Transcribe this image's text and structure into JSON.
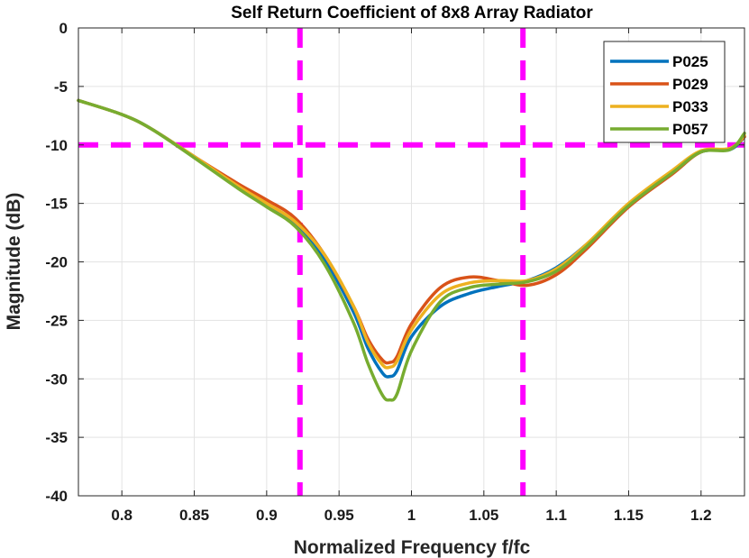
{
  "chart_data": {
    "type": "line",
    "title": "Self Return Coefficient of 8x8 Array Radiator",
    "xlabel": "Normalized Frequency f/fc",
    "ylabel": "Magnitude (dB)",
    "xlim": [
      0.77,
      1.23
    ],
    "ylim": [
      -40,
      0
    ],
    "xticks": [
      0.8,
      0.85,
      0.9,
      0.95,
      1,
      1.05,
      1.1,
      1.15,
      1.2
    ],
    "xtick_labels": [
      "0.8",
      "0.85",
      "0.9",
      "0.95",
      "1",
      "1.05",
      "1.1",
      "1.15",
      "1.2"
    ],
    "yticks": [
      0,
      -5,
      -10,
      -15,
      -20,
      -25,
      -30,
      -35,
      -40
    ],
    "ytick_labels": [
      "0",
      "-5",
      "-10",
      "-15",
      "-20",
      "-25",
      "-30",
      "-35",
      "-40"
    ],
    "grid": true,
    "legend_position": "top-right",
    "reference_lines": {
      "color": "#ff00ff",
      "vertical_x": [
        0.923,
        1.077
      ],
      "horizontal_y": [
        -10
      ]
    },
    "series": [
      {
        "name": "P025",
        "color": "#0072bd",
        "x": [
          0.77,
          0.8,
          0.82,
          0.85,
          0.88,
          0.9,
          0.92,
          0.94,
          0.96,
          0.97,
          0.98,
          0.985,
          0.99,
          1.0,
          1.02,
          1.04,
          1.06,
          1.08,
          1.1,
          1.12,
          1.15,
          1.18,
          1.2,
          1.22,
          1.23
        ],
        "y": [
          -6.2,
          -7.4,
          -8.6,
          -11.0,
          -13.6,
          -15.2,
          -16.8,
          -19.8,
          -24.3,
          -27.4,
          -29.5,
          -29.8,
          -29.3,
          -26.4,
          -23.8,
          -22.7,
          -22.1,
          -21.6,
          -20.5,
          -18.6,
          -15.2,
          -12.4,
          -10.6,
          -10.4,
          -9.3
        ]
      },
      {
        "name": "P029",
        "color": "#d95319",
        "x": [
          0.77,
          0.8,
          0.82,
          0.85,
          0.88,
          0.9,
          0.92,
          0.94,
          0.96,
          0.97,
          0.98,
          0.985,
          0.99,
          1.0,
          1.02,
          1.04,
          1.06,
          1.08,
          1.1,
          1.12,
          1.15,
          1.18,
          1.2,
          1.22,
          1.23
        ],
        "y": [
          -6.2,
          -7.4,
          -8.6,
          -11.0,
          -13.3,
          -14.7,
          -16.3,
          -19.4,
          -23.8,
          -26.6,
          -28.4,
          -28.6,
          -28.1,
          -25.3,
          -22.2,
          -21.3,
          -21.6,
          -22.0,
          -21.1,
          -19.0,
          -15.3,
          -12.5,
          -10.6,
          -10.3,
          -9.3
        ]
      },
      {
        "name": "P033",
        "color": "#edb120",
        "x": [
          0.77,
          0.8,
          0.82,
          0.85,
          0.88,
          0.9,
          0.92,
          0.94,
          0.96,
          0.97,
          0.98,
          0.985,
          0.99,
          1.0,
          1.02,
          1.04,
          1.06,
          1.08,
          1.1,
          1.12,
          1.15,
          1.18,
          1.2,
          1.22,
          1.23
        ],
        "y": [
          -6.2,
          -7.4,
          -8.6,
          -11.0,
          -13.5,
          -15.0,
          -16.6,
          -19.4,
          -23.8,
          -26.9,
          -28.8,
          -29.0,
          -28.5,
          -25.8,
          -22.8,
          -21.8,
          -21.6,
          -21.6,
          -20.6,
          -18.6,
          -15.0,
          -12.2,
          -10.5,
          -10.3,
          -9.2
        ]
      },
      {
        "name": "P057",
        "color": "#77ac30",
        "x": [
          0.77,
          0.8,
          0.82,
          0.85,
          0.88,
          0.9,
          0.92,
          0.94,
          0.96,
          0.97,
          0.98,
          0.985,
          0.99,
          1.0,
          1.02,
          1.04,
          1.06,
          1.08,
          1.1,
          1.12,
          1.15,
          1.18,
          1.2,
          1.22,
          1.23
        ],
        "y": [
          -6.2,
          -7.4,
          -8.6,
          -11.1,
          -13.7,
          -15.3,
          -17.0,
          -20.2,
          -25.2,
          -28.7,
          -31.4,
          -31.8,
          -31.3,
          -27.6,
          -23.4,
          -22.2,
          -21.9,
          -21.7,
          -20.8,
          -18.8,
          -15.2,
          -12.4,
          -10.6,
          -10.4,
          -9.0
        ]
      }
    ]
  }
}
